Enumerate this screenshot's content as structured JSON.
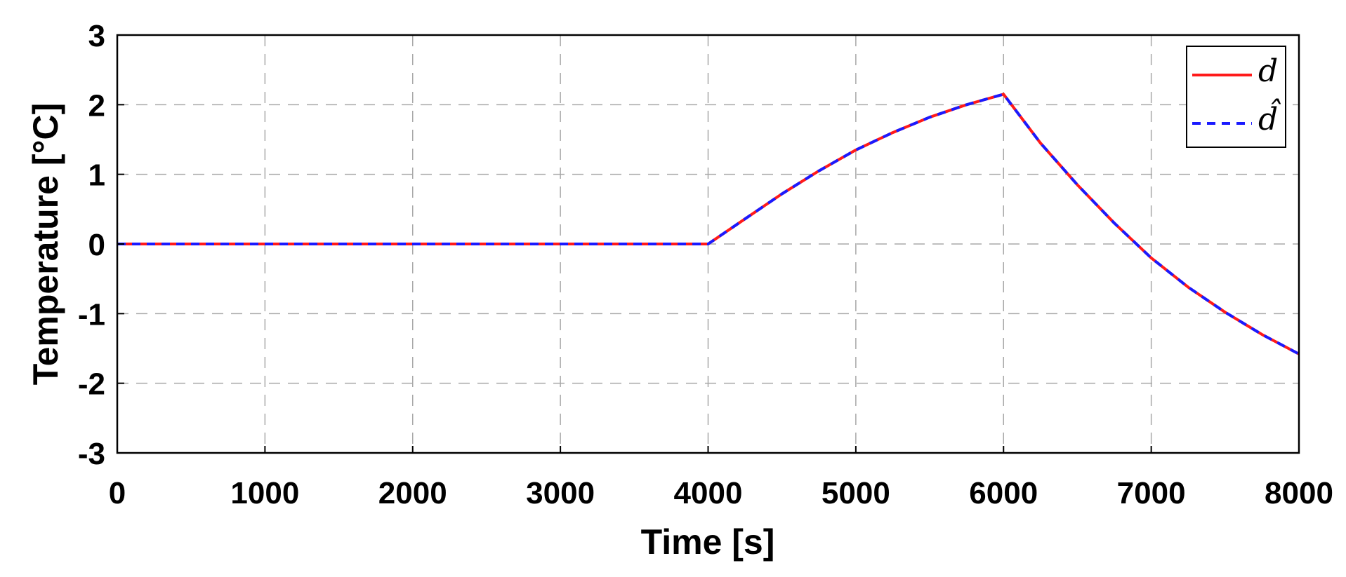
{
  "chart_data": {
    "type": "line",
    "xlabel": "Time [s]",
    "ylabel": "Temperature [°C]",
    "xlim": [
      0,
      8000
    ],
    "ylim": [
      -3,
      3
    ],
    "xticks": [
      0,
      1000,
      2000,
      3000,
      4000,
      5000,
      6000,
      7000,
      8000
    ],
    "xtick_labels": [
      "0",
      "1000",
      "2000",
      "3000",
      "4000",
      "5000",
      "6000",
      "7000",
      "8000"
    ],
    "yticks": [
      -3,
      -2,
      -1,
      0,
      1,
      2,
      3
    ],
    "ytick_labels": [
      "-3",
      "-2",
      "-1",
      "0",
      "1",
      "2",
      "3"
    ],
    "grid": true,
    "legend_position": "top-right",
    "series": [
      {
        "name": "d",
        "color": "#ff1a1a",
        "style": "solid",
        "x": [
          0,
          1000,
          2000,
          3000,
          4000,
          4250,
          4500,
          4750,
          5000,
          5250,
          5500,
          5750,
          6000,
          6250,
          6500,
          6750,
          7000,
          7250,
          7500,
          7750,
          8000
        ],
        "y": [
          0,
          0,
          0,
          0,
          0,
          0.36,
          0.72,
          1.05,
          1.35,
          1.6,
          1.82,
          2.0,
          2.15,
          1.45,
          0.85,
          0.3,
          -0.2,
          -0.62,
          -0.98,
          -1.3,
          -1.58
        ]
      },
      {
        "name": "d̂",
        "color": "#1a1aff",
        "style": "dashed",
        "x": [
          0,
          1000,
          2000,
          3000,
          4000,
          4250,
          4500,
          4750,
          5000,
          5250,
          5500,
          5750,
          6000,
          6250,
          6500,
          6750,
          7000,
          7250,
          7500,
          7750,
          8000
        ],
        "y": [
          0,
          0,
          0,
          0,
          0,
          0.36,
          0.72,
          1.05,
          1.35,
          1.6,
          1.82,
          2.0,
          2.15,
          1.45,
          0.85,
          0.3,
          -0.2,
          -0.62,
          -0.98,
          -1.3,
          -1.58
        ]
      }
    ]
  }
}
